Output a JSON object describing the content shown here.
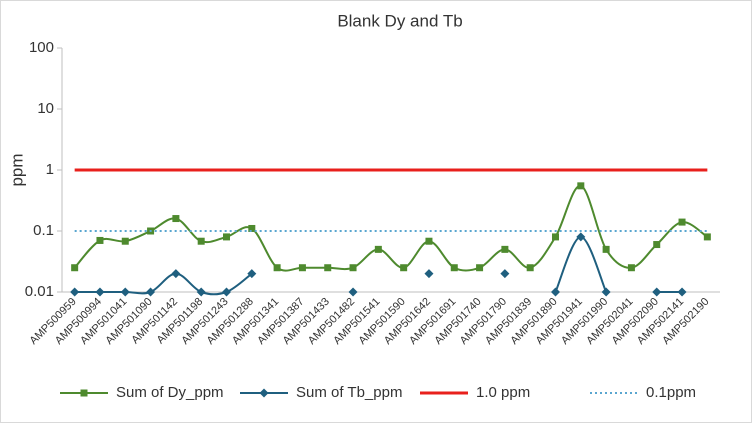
{
  "chart_data": {
    "type": "line",
    "title": "Blank Dy and Tb",
    "y_label": "ppm",
    "log_scale": true,
    "categories": [
      "AMP500959",
      "AMP500994",
      "AMP501041",
      "AMP501090",
      "AMP501142",
      "AMP501198",
      "AMP501243",
      "AMP501288",
      "AMP501341",
      "AMP501387",
      "AMP501433",
      "AMP501482",
      "AMP501541",
      "AMP501590",
      "AMP501642",
      "AMP501691",
      "AMP501740",
      "AMP501790",
      "AMP501839",
      "AMP501890",
      "AMP501941",
      "AMP501990",
      "AMP502041",
      "AMP502090",
      "AMP502141",
      "AMP502190"
    ],
    "series": [
      {
        "name": "Sum of Dy_ppm",
        "color": "#4e8a2e",
        "marker": "square",
        "style": "solid",
        "values": [
          0.025,
          0.07,
          0.068,
          0.1,
          0.16,
          0.068,
          0.08,
          0.11,
          0.025,
          0.025,
          0.025,
          0.025,
          0.05,
          0.025,
          0.068,
          0.025,
          0.025,
          0.05,
          0.025,
          0.08,
          0.55,
          0.05,
          0.025,
          0.06,
          0.14,
          0.08
        ]
      },
      {
        "name": "Sum of Tb_ppm",
        "color": "#1f5f7f",
        "marker": "diamond",
        "style": "solid",
        "values": [
          0.01,
          0.01,
          0.01,
          0.01,
          0.02,
          0.01,
          0.01,
          0.02,
          null,
          null,
          null,
          0.01,
          null,
          null,
          0.02,
          null,
          null,
          0.02,
          null,
          0.01,
          0.08,
          0.01,
          null,
          0.01,
          0.01,
          null
        ]
      },
      {
        "name": "1.0 ppm",
        "color": "#e8201c",
        "marker": "none",
        "style": "solid",
        "values": [
          1,
          1,
          1,
          1,
          1,
          1,
          1,
          1,
          1,
          1,
          1,
          1,
          1,
          1,
          1,
          1,
          1,
          1,
          1,
          1,
          1,
          1,
          1,
          1,
          1,
          1
        ]
      },
      {
        "name": "0.1ppm",
        "color": "#5aa6d0",
        "marker": "none",
        "style": "dotted",
        "values": [
          0.1,
          0.1,
          0.1,
          0.1,
          0.1,
          0.1,
          0.1,
          0.1,
          0.1,
          0.1,
          0.1,
          0.1,
          0.1,
          0.1,
          0.1,
          0.1,
          0.1,
          0.1,
          0.1,
          0.1,
          0.1,
          0.1,
          0.1,
          0.1,
          0.1,
          0.1
        ]
      }
    ],
    "ylim": [
      0.01,
      100
    ],
    "yticks": [
      0.01,
      0.1,
      1,
      10,
      100
    ],
    "grid": false,
    "legend": "bottom"
  }
}
